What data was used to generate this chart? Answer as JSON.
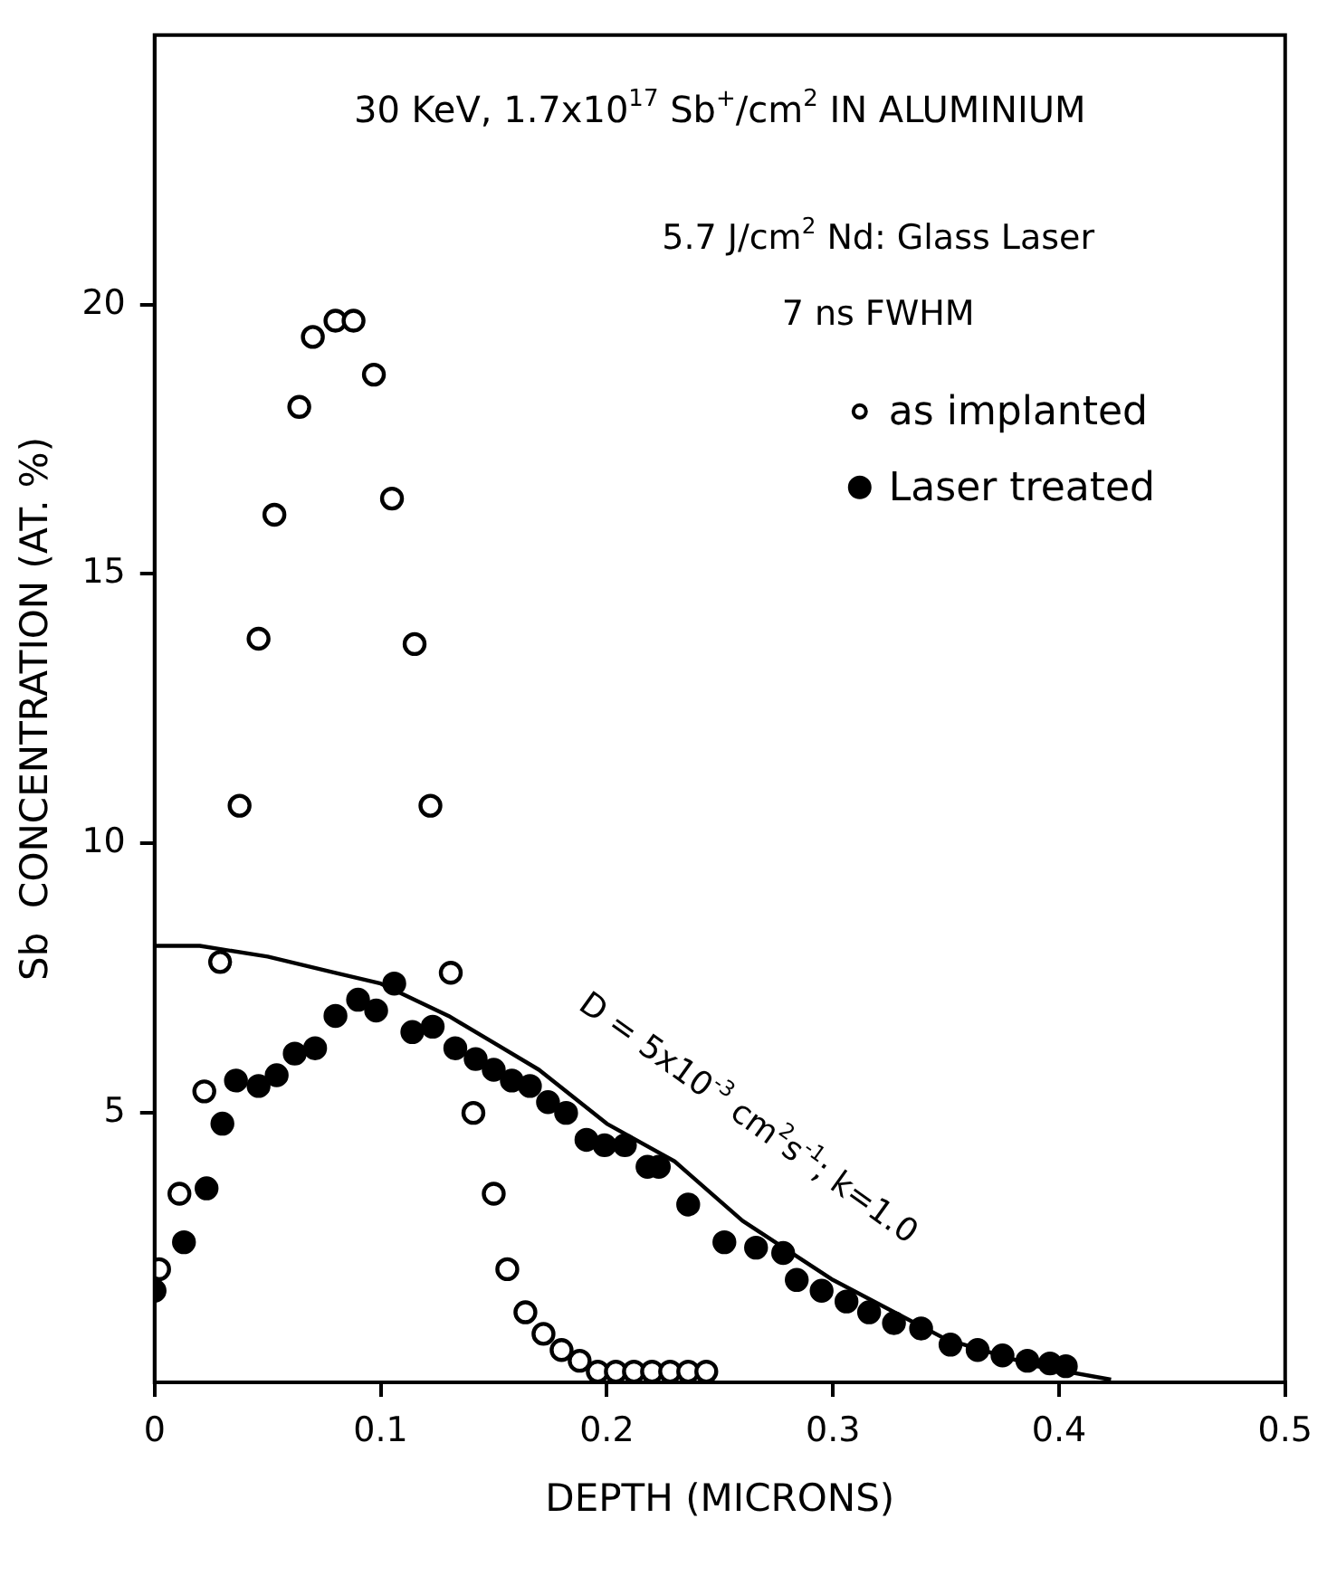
{
  "chart_data": {
    "type": "scatter",
    "title": "30 KeV, 1.7x10$^{17}$ Sb$^{+}$/cm$^{2}$ IN ALUMINIUM",
    "xlabel": "DEPTH (MICRONS)",
    "ylabel": "Sb  CONCENTRATION (AT. %)",
    "xlim": [
      0,
      0.5
    ],
    "xticks": [
      0,
      0.1,
      0.2,
      0.3,
      0.4,
      0.5
    ],
    "ylim": [
      0,
      25
    ],
    "yticks": [
      5,
      10,
      15,
      20
    ],
    "grid": false,
    "legend": "top right",
    "marker": "circle",
    "annotations": [
      "5.7 J/cm$^{2}$ Nd: Glass Laser",
      "7 ns FWHM",
      "D = 5x10$^{-3}$ cm$^{2}$s$^{-1}$; k=1.0"
    ],
    "series": [
      {
        "name": "as implanted",
        "color": "#000000",
        "x": [
          0.002,
          0.011,
          0.022,
          0.029,
          0.0376,
          0.046,
          0.053,
          0.064,
          0.07,
          0.08,
          0.088,
          0.097,
          0.105,
          0.115,
          0.122,
          0.131,
          0.141,
          0.15,
          0.156,
          0.164,
          0.172,
          0.18,
          0.188,
          0.196,
          0.204,
          0.212,
          0.22,
          0.228,
          0.236,
          0.244
        ],
        "values": [
          2.1,
          3.5,
          5.4,
          7.8,
          10.7,
          13.8,
          16.1,
          18.1,
          19.4,
          19.7,
          19.7,
          18.7,
          16.4,
          13.7,
          10.7,
          7.6,
          5.0,
          3.5,
          2.1,
          1.3,
          0.9,
          0.6,
          0.4,
          0.2,
          0.2,
          0.2,
          0.2,
          0.2,
          0.2,
          0.2
        ]
      },
      {
        "name": "Laser treated",
        "color": "#000000",
        "x": [
          0,
          0.013,
          0.023,
          0.03,
          0.036,
          0.046,
          0.054,
          0.062,
          0.071,
          0.08,
          0.09,
          0.098,
          0.106,
          0.114,
          0.123,
          0.133,
          0.142,
          0.15,
          0.158,
          0.166,
          0.174,
          0.182,
          0.191,
          0.199,
          0.208,
          0.218,
          0.223,
          0.236,
          0.252,
          0.266,
          0.278,
          0.284,
          0.295,
          0.306,
          0.316,
          0.327,
          0.339,
          0.352,
          0.364,
          0.375,
          0.386,
          0.396,
          0.403
        ],
        "values": [
          1.7,
          2.6,
          3.6,
          4.8,
          5.6,
          5.5,
          5.7,
          6.1,
          6.2,
          6.8,
          7.1,
          6.9,
          7.4,
          6.5,
          6.6,
          6.2,
          6.0,
          5.8,
          5.6,
          5.5,
          5.2,
          5.0,
          4.5,
          4.4,
          4.4,
          4.0,
          4.0,
          3.3,
          2.6,
          2.5,
          2.4,
          1.9,
          1.7,
          1.5,
          1.3,
          1.1,
          1.0,
          0.7,
          0.6,
          0.5,
          0.4,
          0.35,
          0.3
        ]
      },
      {
        "type": "line",
        "color": "#000000",
        "marker": "none",
        "line_style": "solid",
        "x": [
          0,
          0.02,
          0.05,
          0.08,
          0.1,
          0.13,
          0.15,
          0.17,
          0.2,
          0.23,
          0.26,
          0.3,
          0.35,
          0.39,
          0.423
        ],
        "values": [
          8.1,
          8.1,
          7.9,
          7.6,
          7.4,
          6.8,
          6.3,
          5.8,
          4.8,
          4.1,
          3.0,
          1.9,
          0.8,
          0.3,
          0.05
        ]
      }
    ]
  }
}
